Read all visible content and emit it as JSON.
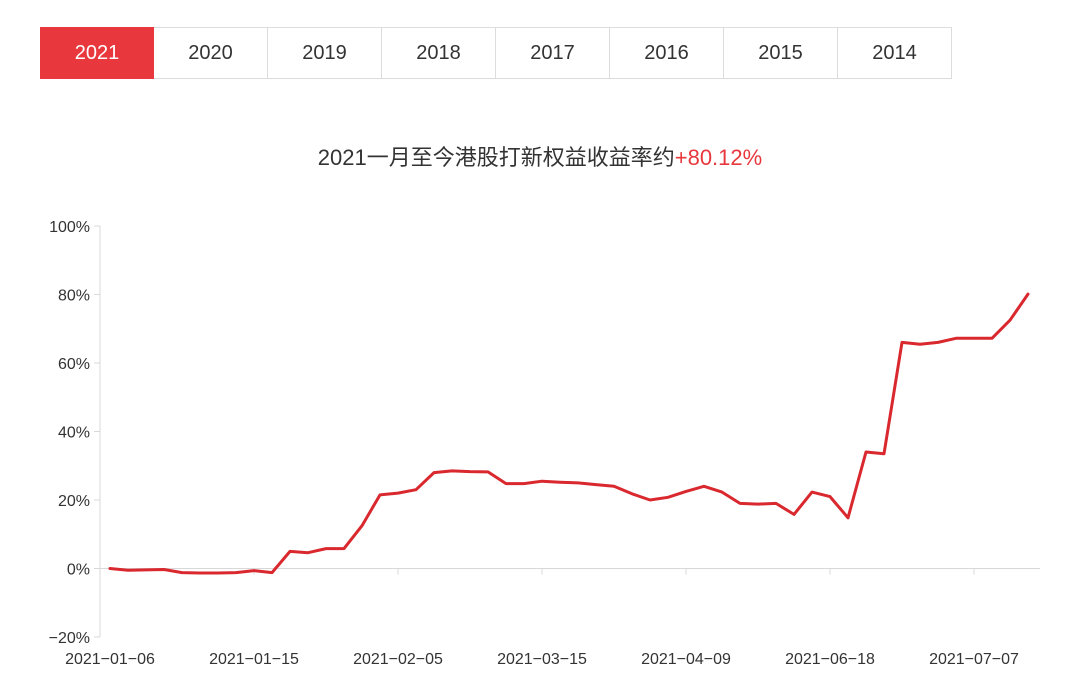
{
  "year_tabs": [
    "2021",
    "2020",
    "2019",
    "2018",
    "2017",
    "2016",
    "2015",
    "2014"
  ],
  "active_tab_index": 0,
  "title": {
    "prefix": "2021一月至今港股打新权益收益率约",
    "highlight": "+80.12%"
  },
  "colors": {
    "accent": "#e8383d",
    "line": "#d9282e",
    "axis": "#d8d8d8",
    "text": "#333333"
  },
  "chart_data": {
    "type": "line",
    "title": "2021一月至今港股打新权益收益率约+80.12%",
    "xlabel": "",
    "ylabel": "",
    "ylim": [
      -20,
      100
    ],
    "yticks": [
      -20,
      0,
      20,
      40,
      60,
      80,
      100
    ],
    "ytick_labels": [
      "−20%",
      "0%",
      "20%",
      "40%",
      "60%",
      "80%",
      "100%"
    ],
    "xtick_labels": [
      "2021−01−06",
      "2021−01−15",
      "2021−02−05",
      "2021−03−15",
      "2021−04−09",
      "2021−06−18",
      "2021−07−07"
    ],
    "xtick_positions": [
      0,
      8,
      16,
      24,
      32,
      40,
      48
    ],
    "grid": false,
    "series": [
      {
        "name": "",
        "values": [
          0,
          -0.5,
          -0.4,
          -0.3,
          -1.2,
          -1.3,
          -1.3,
          -1.2,
          -0.6,
          -1.2,
          5.0,
          4.6,
          5.8,
          5.8,
          12.5,
          21.5,
          22.0,
          23.0,
          28.0,
          28.5,
          28.3,
          28.2,
          24.8,
          24.8,
          25.5,
          25.2,
          25.0,
          24.5,
          24.0,
          21.8,
          20.0,
          20.8,
          22.5,
          24.0,
          22.3,
          19.0,
          18.8,
          19.0,
          15.8,
          22.3,
          21.0,
          14.8,
          34.0,
          33.5,
          66.0,
          65.5,
          66.0,
          67.2,
          67.2,
          67.2,
          72.5,
          80.12
        ]
      }
    ]
  }
}
